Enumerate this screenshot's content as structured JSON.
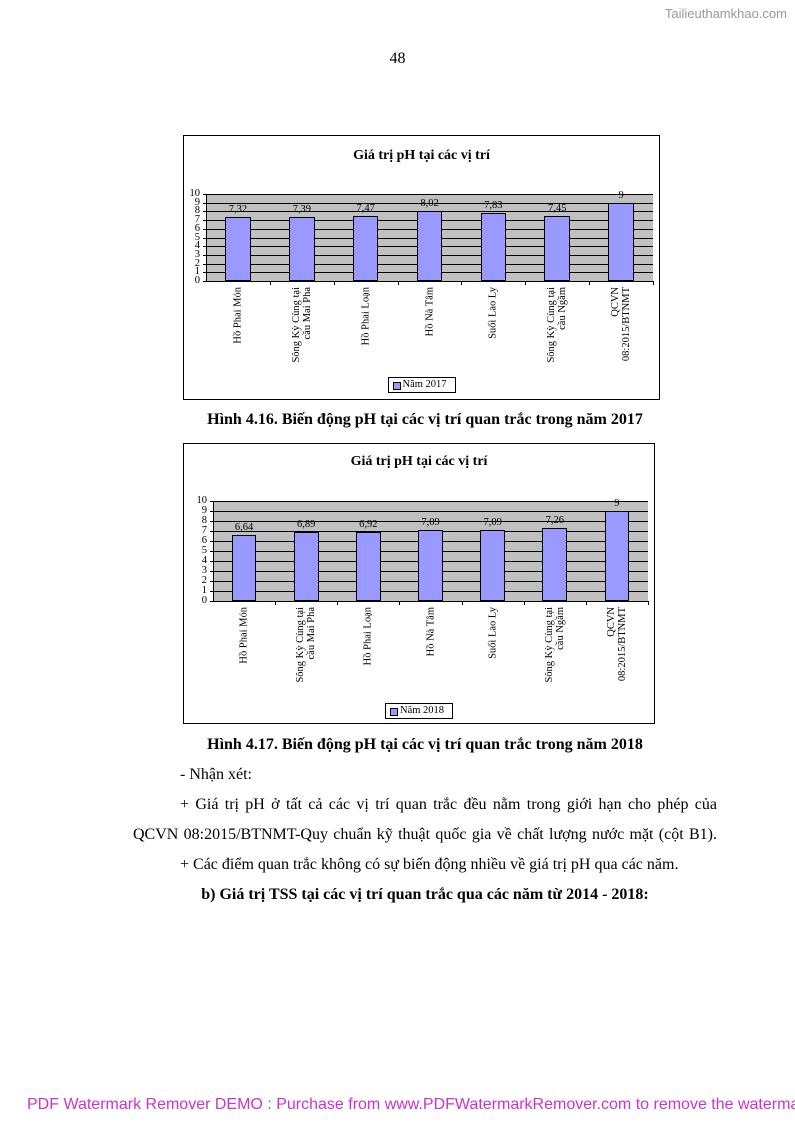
{
  "watermarks": {
    "top": "Tailieuthamkhao.com",
    "bottom": "PDF Watermark Remover DEMO : Purchase from www.PDFWatermarkRemover.com to remove the waterma"
  },
  "page_number": "48",
  "chart_data": [
    {
      "type": "bar",
      "title": "Giá trị pH tại các vị trí",
      "categories": [
        "Hồ Phai Món",
        "Sông Kỳ Cùng tại\ncầu Mai Pha",
        "Hồ Phai Loạn",
        "Hồ Nà Tâm",
        "Suối Lao Ly",
        "Sông Kỳ Cùng tại\ncầu Ngầm",
        "QCVN\n08:2015/BTNMT"
      ],
      "series": [
        {
          "name": "Năm 2017",
          "color": "#9999ff",
          "values": [
            7.32,
            7.39,
            7.47,
            8.02,
            7.83,
            7.45,
            9
          ],
          "value_labels": [
            "7,32",
            "7,39",
            "7,47",
            "8,02",
            "7,83",
            "7,45",
            "9"
          ]
        }
      ],
      "ylim": [
        0,
        10
      ],
      "yticks": [
        0,
        1,
        2,
        3,
        4,
        5,
        6,
        7,
        8,
        9,
        10
      ],
      "grid": true,
      "legend": "bottom"
    },
    {
      "type": "bar",
      "title": "Giá trị pH tại các vị trí",
      "categories": [
        "Hồ Phai Món",
        "Sông Kỳ Cùng tại\ncầu Mai Pha",
        "Hồ Phai Loạn",
        "Hồ Nà Tâm",
        "Suối Lao Ly",
        "Sông Kỳ Cùng tại\ncầu Ngầm",
        "QCVN\n08:2015/BTNMT"
      ],
      "series": [
        {
          "name": "Năm 2018",
          "color": "#9999ff",
          "values": [
            6.64,
            6.89,
            6.92,
            7.09,
            7.09,
            7.26,
            9
          ],
          "value_labels": [
            "6,64",
            "6,89",
            "6,92",
            "7,09",
            "7,09",
            "7,26",
            "9"
          ]
        }
      ],
      "ylim": [
        0,
        10
      ],
      "yticks": [
        0,
        1,
        2,
        3,
        4,
        5,
        6,
        7,
        8,
        9,
        10
      ],
      "grid": true,
      "legend": "bottom"
    }
  ],
  "figure_captions": [
    "Hình 4.16. Biến động pH tại các vị trí quan trắc trong năm 2017",
    "Hình 4.17. Biến động pH tại các vị trí quan trắc trong năm 2018"
  ],
  "body": {
    "lines": [
      "- Nhận xét:",
      "+ Giá trị pH ở tất cả các vị trí quan trắc đều nằm trong giới hạn cho phép của",
      "QCVN 08:2015/BTNMT-Quy chuẩn kỹ thuật quốc gia về chất lượng nước mặt (cột B1).",
      "+ Các điểm quan trắc không có sự biến động nhiều về giá trị pH qua các năm."
    ],
    "heading": "b) Giá trị TSS tại các vị trí quan trắc qua các năm từ 2014 - 2018:"
  }
}
